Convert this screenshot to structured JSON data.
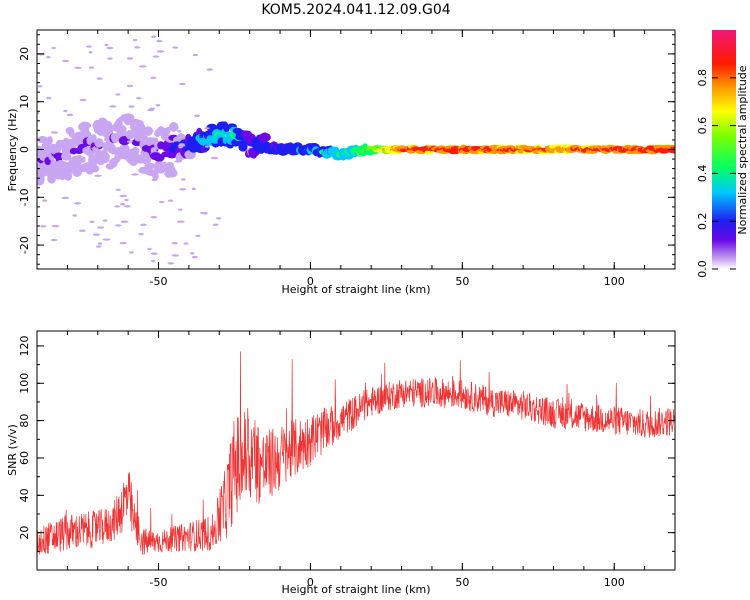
{
  "title": "KOM5.2024.041.12.09.G04",
  "chart_data": [
    {
      "type": "heatmap",
      "xlabel": "Height of straight line (km)",
      "ylabel": "Frequency (Hz)",
      "xlim": [
        -90,
        120
      ],
      "ylim": [
        -25,
        25
      ],
      "xticks": [
        -50,
        0,
        50,
        100
      ],
      "yticks": [
        -20,
        -10,
        0,
        10,
        20
      ],
      "colorbar": {
        "label": "Normalized spectral amplitude",
        "ticks": [
          0.0,
          0.2,
          0.4,
          0.6,
          0.8
        ],
        "tick_labels": [
          "0.0",
          "0.2",
          "0.4",
          "0.6",
          "0.8"
        ],
        "range": [
          0,
          1
        ]
      },
      "ridge": {
        "x": [
          -90,
          -80,
          -70,
          -60,
          -50,
          -40,
          -30,
          -25,
          -20,
          -10,
          0,
          10,
          20,
          30,
          50,
          80,
          120
        ],
        "freq": [
          -3,
          -1,
          1,
          2,
          -1,
          1,
          3,
          3,
          1,
          0,
          0,
          -1,
          0,
          0,
          0,
          0,
          0
        ],
        "amplitude": [
          0.1,
          0.15,
          0.15,
          0.15,
          0.15,
          0.3,
          0.45,
          0.45,
          0.3,
          0.3,
          0.35,
          0.45,
          0.6,
          0.9,
          0.95,
          0.85,
          0.95
        ]
      },
      "grid": false
    },
    {
      "type": "line",
      "xlabel": "Height of straight line (km)",
      "ylabel": "SNR (v/v)",
      "xlim": [
        -90,
        120
      ],
      "ylim": [
        0,
        128
      ],
      "xticks": [
        -50,
        0,
        50,
        100
      ],
      "yticks": [
        20,
        40,
        60,
        80,
        100,
        120
      ],
      "color": "#ee3333",
      "series": [
        {
          "x": [
            -90,
            -80,
            -70,
            -65,
            -60,
            -58,
            -55,
            -50,
            -40,
            -32,
            -28,
            -25,
            -20,
            -15,
            -10,
            -5,
            0,
            10,
            20,
            30,
            40,
            50,
            60,
            70,
            80,
            90,
            100,
            110,
            120
          ],
          "values": [
            15,
            20,
            22,
            25,
            40,
            25,
            15,
            15,
            18,
            20,
            35,
            55,
            62,
            55,
            60,
            65,
            70,
            80,
            90,
            95,
            95,
            94,
            90,
            88,
            84,
            82,
            80,
            78,
            80
          ],
          "noise": [
            8,
            10,
            10,
            10,
            18,
            12,
            8,
            6,
            8,
            10,
            20,
            28,
            28,
            20,
            18,
            16,
            14,
            10,
            8,
            8,
            8,
            8,
            8,
            8,
            8,
            8,
            8,
            8,
            8
          ]
        }
      ],
      "grid": false
    }
  ]
}
